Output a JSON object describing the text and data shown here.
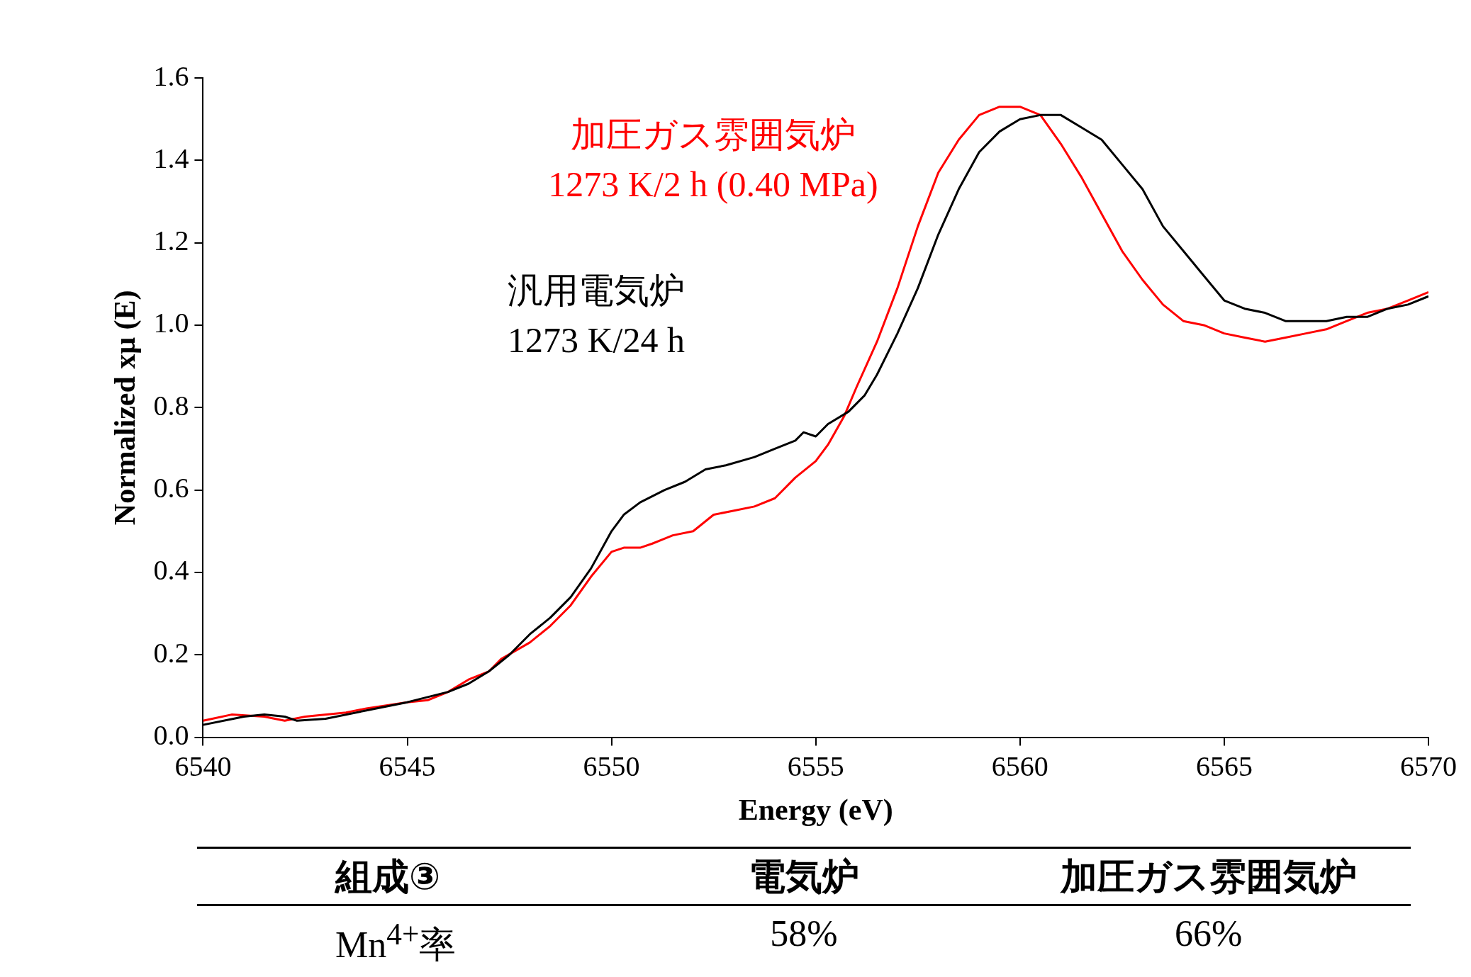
{
  "chart_data": {
    "type": "line",
    "xlabel": "Energy (eV)",
    "ylabel": "Normalized xμ (E)",
    "xlim": [
      6540,
      6570
    ],
    "xticks": [
      6540,
      6545,
      6550,
      6555,
      6560,
      6565,
      6570
    ],
    "ylim": [
      0,
      1.6
    ],
    "yticks": [
      {
        "value": 0,
        "label": "0.0"
      },
      {
        "value": 0.2,
        "label": "0.2"
      },
      {
        "value": 0.4,
        "label": "0.4"
      },
      {
        "value": 0.6,
        "label": "0.6"
      },
      {
        "value": 0.8,
        "label": "0.8"
      },
      {
        "value": 1,
        "label": "1.0"
      },
      {
        "value": 1.2,
        "label": "1.2"
      },
      {
        "value": 1.4,
        "label": "1.4"
      },
      {
        "value": 1.6,
        "label": "1.6"
      }
    ],
    "grid": false,
    "legend": false,
    "marker": "none",
    "line_style": "solid",
    "series": [
      {
        "name": "汎用電気炉\n1273 K/24 h",
        "color": "#000000",
        "x": [
          6540,
          6541,
          6541.5,
          6542,
          6542.3,
          6543,
          6544,
          6545,
          6546,
          6546.5,
          6547,
          6547.5,
          6548,
          6548.5,
          6549,
          6549.5,
          6550,
          6550.3,
          6550.7,
          6551.3,
          6551.8,
          6552.3,
          6552.8,
          6553.5,
          6554,
          6554.5,
          6554.7,
          6555,
          6555.3,
          6555.8,
          6556.2,
          6556.5,
          6557,
          6557.5,
          6558,
          6558.5,
          6559,
          6559.5,
          6560,
          6560.5,
          6561,
          6561.5,
          6562,
          6562.5,
          6563,
          6563.5,
          6564,
          6564.5,
          6565,
          6565.5,
          6566,
          6566.5,
          6567,
          6567.5,
          6568,
          6568.5,
          6569,
          6569.5,
          6570
        ],
        "values": [
          0.03,
          0.05,
          0.055,
          0.05,
          0.04,
          0.045,
          0.065,
          0.085,
          0.11,
          0.13,
          0.16,
          0.2,
          0.25,
          0.29,
          0.34,
          0.41,
          0.5,
          0.54,
          0.57,
          0.6,
          0.62,
          0.65,
          0.66,
          0.68,
          0.7,
          0.72,
          0.74,
          0.73,
          0.76,
          0.79,
          0.83,
          0.88,
          0.98,
          1.09,
          1.22,
          1.33,
          1.42,
          1.47,
          1.5,
          1.51,
          1.51,
          1.48,
          1.45,
          1.39,
          1.33,
          1.24,
          1.18,
          1.12,
          1.06,
          1.04,
          1.03,
          1.01,
          1.01,
          1.01,
          1.02,
          1.02,
          1.04,
          1.05,
          1.07
        ]
      },
      {
        "name": "加圧ガス雰囲気炉\n1273 K/2 h (0.40 MPa)",
        "color": "#ff0000",
        "x": [
          6540,
          6540.7,
          6541.5,
          6542,
          6542.5,
          6543.5,
          6544,
          6545,
          6545.5,
          6546,
          6546.5,
          6547,
          6547.3,
          6548,
          6548.5,
          6549,
          6549.5,
          6550,
          6550.3,
          6550.7,
          6551,
          6551.5,
          6552,
          6552.5,
          6553,
          6553.5,
          6554,
          6554.5,
          6555,
          6555.3,
          6555.7,
          6556,
          6556.5,
          6557,
          6557.5,
          6558,
          6558.5,
          6559,
          6559.5,
          6560,
          6560.5,
          6561,
          6561.5,
          6562,
          6562.5,
          6563,
          6563.5,
          6564,
          6564.5,
          6565,
          6565.5,
          6566,
          6566.5,
          6567,
          6567.5,
          6568,
          6568.5,
          6569,
          6569.5,
          6570
        ],
        "values": [
          0.04,
          0.055,
          0.05,
          0.04,
          0.05,
          0.06,
          0.07,
          0.085,
          0.09,
          0.11,
          0.14,
          0.16,
          0.19,
          0.23,
          0.27,
          0.32,
          0.39,
          0.45,
          0.46,
          0.46,
          0.47,
          0.49,
          0.5,
          0.54,
          0.55,
          0.56,
          0.58,
          0.63,
          0.67,
          0.71,
          0.78,
          0.85,
          0.96,
          1.09,
          1.24,
          1.37,
          1.45,
          1.51,
          1.53,
          1.53,
          1.51,
          1.44,
          1.36,
          1.27,
          1.18,
          1.11,
          1.05,
          1.01,
          1,
          0.98,
          0.97,
          0.96,
          0.97,
          0.98,
          0.99,
          1.01,
          1.03,
          1.04,
          1.06,
          1.08
        ]
      }
    ],
    "annotations": [
      "組成③",
      "電気炉",
      "加圧ガス雰囲気炉",
      "Mn$^{4+}$率",
      "58%",
      "66%"
    ]
  }
}
